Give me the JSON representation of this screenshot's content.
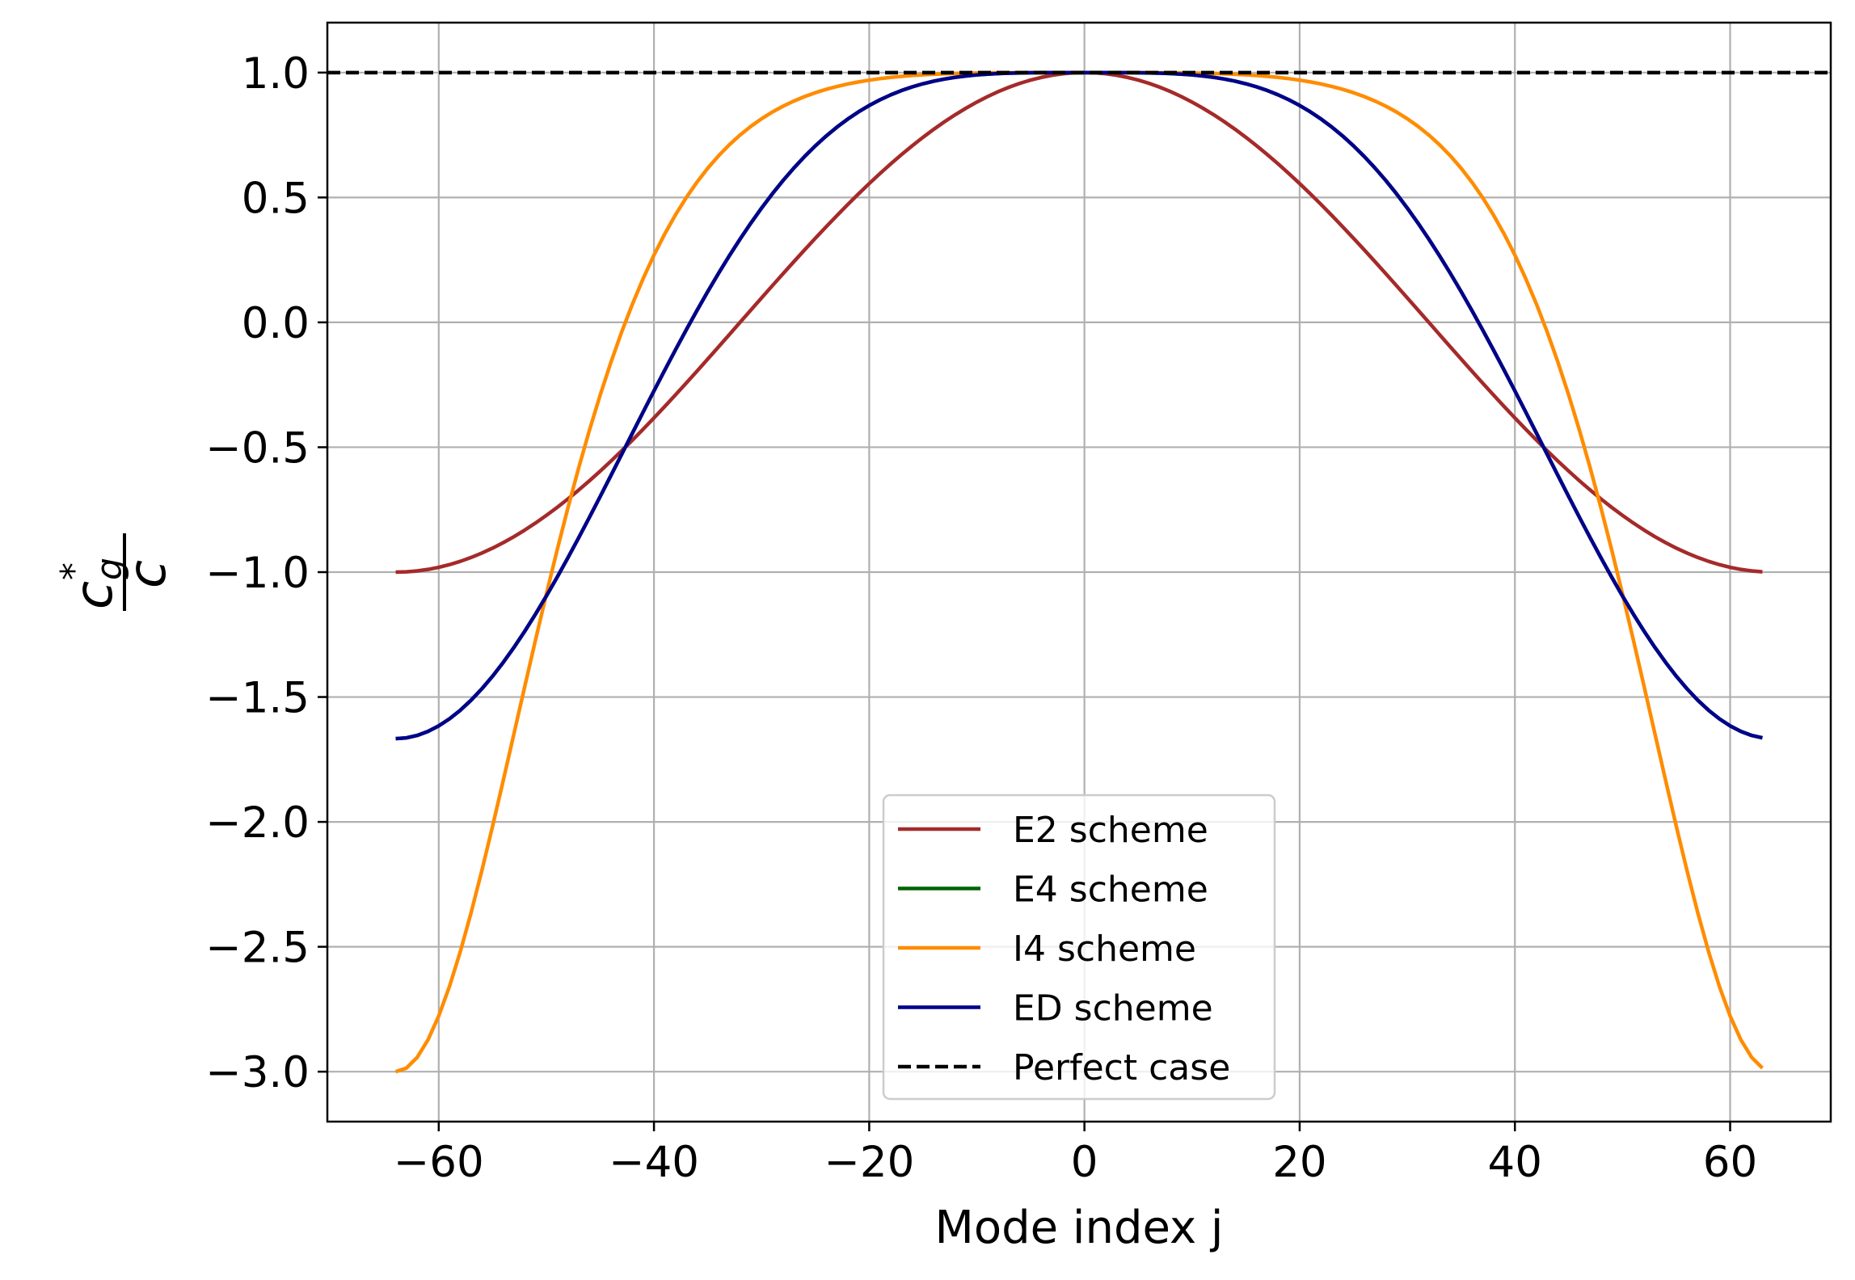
{
  "chart_data": {
    "type": "line",
    "title": "",
    "xlabel": "Mode index j",
    "ylabel": {
      "base": "c",
      "subscript": "g",
      "superscript": "*",
      "denominator": "c"
    },
    "xlim": [
      -70.35,
      69.35
    ],
    "ylim": [
      -3.2,
      1.2
    ],
    "xticks": [
      -60,
      -40,
      -20,
      0,
      20,
      40,
      60
    ],
    "xtick_labels": [
      "−60",
      "−40",
      "−20",
      "0",
      "20",
      "40",
      "60"
    ],
    "yticks": [
      1.0,
      0.5,
      0.0,
      -0.5,
      -1.0,
      -1.5,
      -2.0,
      -2.5,
      -3.0
    ],
    "ytick_labels": [
      "1.0",
      "0.5",
      "0.0",
      "−0.5",
      "−1.0",
      "−1.5",
      "−2.0",
      "−2.5",
      "−3.0"
    ],
    "grid": true,
    "legend_position": "lower-center",
    "x_range": [
      -64,
      63
    ],
    "series": [
      {
        "name": "E2 scheme",
        "color": "#a52a2a",
        "style": "solid",
        "scheme": "E2"
      },
      {
        "name": "E4 scheme",
        "color": "#006400",
        "style": "solid",
        "scheme": "E4"
      },
      {
        "name": "I4 scheme",
        "color": "#ff8c00",
        "style": "solid",
        "scheme": "I4"
      },
      {
        "name": "ED scheme",
        "color": "#00008b",
        "style": "solid",
        "scheme": "ED"
      },
      {
        "name": "Perfect case",
        "color": "#000000",
        "style": "dashed",
        "scheme": "perfect"
      }
    ],
    "draw_order": [
      "E2",
      "E4",
      "I4",
      "ED",
      "perfect"
    ]
  }
}
